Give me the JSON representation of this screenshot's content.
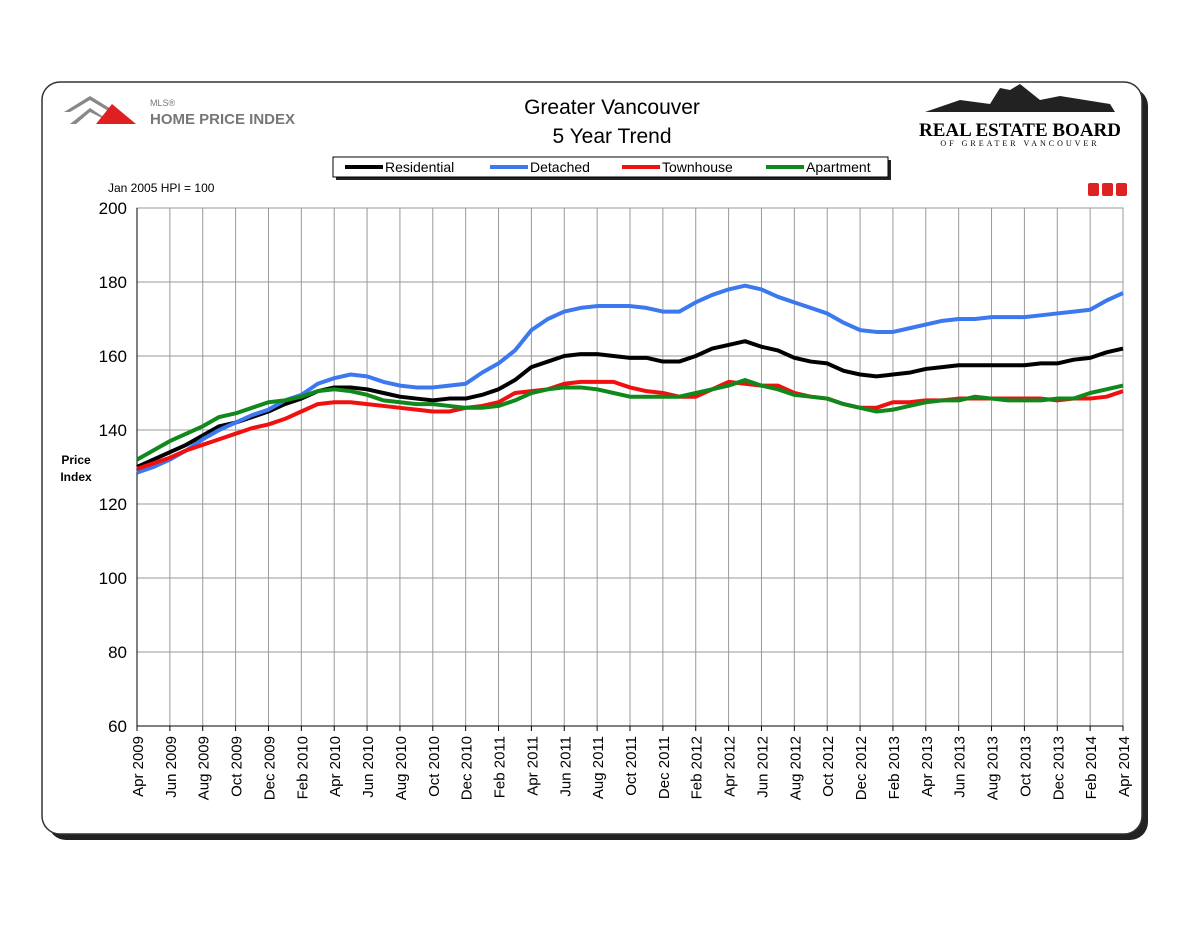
{
  "chart_data": {
    "type": "line",
    "title": "Greater Vancouver",
    "subtitle": "5 Year Trend",
    "note": "Jan 2005 HPI = 100",
    "y_label": "Price Index",
    "logo_left": {
      "small": "MLS®",
      "main": "HOME PRICE INDEX"
    },
    "logo_right": {
      "main": "REAL ESTATE BOARD",
      "sub": "OF GREATER VANCOUVER"
    },
    "categories": [
      "Apr 2009",
      null,
      "Jun 2009",
      null,
      "Aug 2009",
      null,
      "Oct 2009",
      null,
      "Dec 2009",
      null,
      "Feb 2010",
      null,
      "Apr 2010",
      null,
      "Jun 2010",
      null,
      "Aug 2010",
      null,
      "Oct 2010",
      null,
      "Dec 2010",
      null,
      "Feb 2011",
      null,
      "Apr 2011",
      null,
      "Jun 2011",
      null,
      "Aug 2011",
      null,
      "Oct 2011",
      null,
      "Dec 2011",
      null,
      "Feb 2012",
      null,
      "Apr 2012",
      null,
      "Jun 2012",
      null,
      "Aug 2012",
      null,
      "Oct 2012",
      null,
      "Dec 2012",
      null,
      "Feb 2013",
      null,
      "Apr 2013",
      null,
      "Jun 2013",
      null,
      "Aug 2013",
      null,
      "Oct 2013",
      null,
      "Dec 2013",
      null,
      "Feb 2014",
      null,
      "Apr 2014"
    ],
    "series": [
      {
        "name": "Residential",
        "color": "#000000",
        "values": [
          130,
          132,
          134,
          136,
          138.5,
          141,
          142,
          143.5,
          145,
          147,
          148.5,
          150.5,
          151.5,
          151.5,
          151,
          150,
          149,
          148.5,
          148,
          148.5,
          148.5,
          149.5,
          151,
          153.5,
          157,
          158.5,
          160,
          160.5,
          160.5,
          160,
          159.5,
          159.5,
          158.5,
          158.5,
          160,
          162,
          163,
          164,
          162.5,
          161.5,
          159.5,
          158.5,
          158,
          156,
          155,
          154.5,
          155,
          155.5,
          156.5,
          157,
          157.5,
          157.5,
          157.5,
          157.5,
          157.5,
          158,
          158,
          159,
          159.5,
          161,
          162
        ]
      },
      {
        "name": "Detached",
        "color": "#3c78f0",
        "values": [
          128.5,
          130,
          132,
          134.5,
          137.5,
          140,
          142,
          144,
          145.5,
          148,
          149.5,
          152.5,
          154,
          155,
          154.5,
          153,
          152,
          151.5,
          151.5,
          152,
          152.5,
          155.5,
          158,
          161.5,
          167,
          170,
          172,
          173,
          173.5,
          173.5,
          173.5,
          173,
          172,
          172,
          174.5,
          176.5,
          178,
          179,
          178,
          176,
          174.5,
          173,
          171.5,
          169,
          167,
          166.5,
          166.5,
          167.5,
          168.5,
          169.5,
          170,
          170,
          170.5,
          170.5,
          170.5,
          171,
          171.5,
          172,
          172.5,
          175,
          177
        ]
      },
      {
        "name": "Townhouse",
        "color": "#f01010",
        "values": [
          129.5,
          131,
          132.5,
          134.5,
          136,
          137.5,
          139,
          140.5,
          141.5,
          143,
          145,
          147,
          147.5,
          147.5,
          147,
          146.5,
          146,
          145.5,
          145,
          145,
          146,
          146.5,
          147.5,
          150,
          150.5,
          151,
          152.5,
          153,
          153,
          153,
          151.5,
          150.5,
          150,
          149,
          149,
          151,
          153,
          152.5,
          152,
          152,
          150,
          149,
          148.5,
          147,
          146,
          146,
          147.5,
          147.5,
          148,
          148,
          148.5,
          148.5,
          148.5,
          148.5,
          148.5,
          148.5,
          148,
          148.5,
          148.5,
          149,
          150.5
        ]
      },
      {
        "name": "Apartment",
        "color": "#10881c",
        "values": [
          132,
          134.5,
          137,
          139,
          141,
          143.5,
          144.5,
          146,
          147.5,
          148,
          149,
          150.5,
          151,
          150.5,
          149.5,
          148,
          147.5,
          147,
          147,
          146.5,
          146,
          146,
          146.5,
          148,
          150,
          151,
          151.5,
          151.5,
          151,
          150,
          149,
          149,
          149,
          149,
          150,
          151,
          152,
          153.5,
          152,
          151,
          149.5,
          149,
          148.5,
          147,
          146,
          145,
          145.5,
          146.5,
          147.5,
          148,
          148,
          149,
          148.5,
          148,
          148,
          148,
          148.5,
          148.5,
          150,
          151,
          152
        ]
      }
    ],
    "ylim": [
      60,
      200
    ],
    "yticks": [
      60,
      80,
      100,
      120,
      140,
      160,
      180,
      200
    ],
    "grid": true
  }
}
